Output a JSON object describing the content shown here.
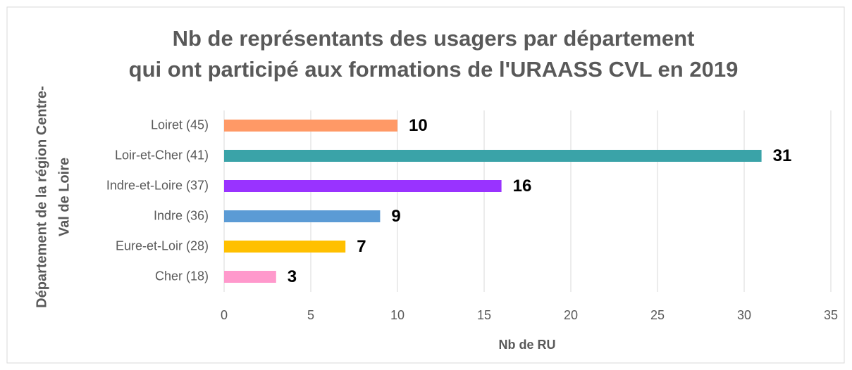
{
  "chart_data": {
    "type": "bar",
    "orientation": "horizontal",
    "title": [
      "Nb de représentants des usagers par département",
      "qui ont participé aux formations de l'URAASS CVL en 2019"
    ],
    "ylabel": [
      "Département de la région Centre-",
      "Val de Loire"
    ],
    "xlabel": "Nb de RU",
    "categories": [
      "Loiret (45)",
      "Loir-et-Cher (41)",
      "Indre-et-Loire (37)",
      "Indre (36)",
      "Eure-et-Loir (28)",
      "Cher (18)"
    ],
    "values": [
      10,
      31,
      16,
      9,
      7,
      3
    ],
    "colors": [
      "#ff9966",
      "#3aa3a8",
      "#9933ff",
      "#5b9bd5",
      "#ffc000",
      "#ff99cc"
    ],
    "xlim": [
      0,
      35
    ],
    "xticks": [
      0,
      5,
      10,
      15,
      20,
      25,
      30,
      35
    ],
    "grid": true
  }
}
